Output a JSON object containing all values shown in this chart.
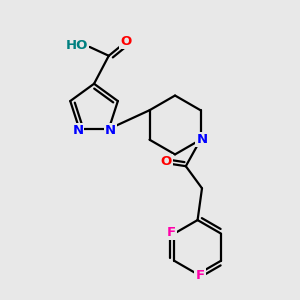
{
  "bg_color": "#e8e8e8",
  "bond_color": "#000000",
  "bond_width": 1.6,
  "atom_colors": {
    "O": "#ff0000",
    "N": "#0000ff",
    "F": "#ff00aa",
    "H": "#008080",
    "C": "#000000"
  },
  "font_size_atom": 9.5
}
